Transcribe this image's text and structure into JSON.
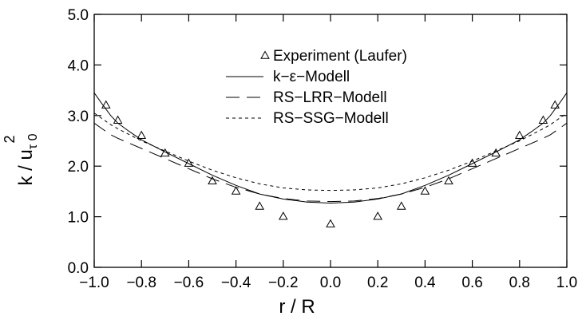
{
  "chart_data": {
    "type": "line",
    "xlabel": "r / R",
    "ylabel_main": "k / u",
    "ylabel_sub": "τ 0",
    "ylabel_sup": "2",
    "xlim": [
      -1.0,
      1.0
    ],
    "ylim": [
      0.0,
      5.0
    ],
    "x_ticks": [
      -1.0,
      -0.8,
      -0.6,
      -0.4,
      -0.2,
      0.0,
      0.2,
      0.4,
      0.6,
      0.8,
      1.0
    ],
    "x_tick_labels": [
      "−1.0",
      "−0.8",
      "−0.6",
      "−0.4",
      "−0.2",
      "0.0",
      "0.2",
      "0.4",
      "0.6",
      "0.8",
      "1.0"
    ],
    "y_ticks": [
      0.0,
      1.0,
      2.0,
      3.0,
      4.0,
      5.0
    ],
    "y_tick_labels": [
      "0.0",
      "1.0",
      "2.0",
      "3.0",
      "4.0",
      "5.0"
    ],
    "grid": false,
    "legend_position": "top-center",
    "series": [
      {
        "name": "Experiment (Laufer)",
        "style": "triangle-markers",
        "x": [
          -0.95,
          -0.9,
          -0.8,
          -0.7,
          -0.6,
          -0.5,
          -0.4,
          -0.3,
          -0.2,
          0.0,
          0.2,
          0.3,
          0.4,
          0.5,
          0.6,
          0.7,
          0.8,
          0.9,
          0.95
        ],
        "y": [
          3.2,
          2.9,
          2.6,
          2.25,
          2.05,
          1.7,
          1.5,
          1.2,
          1.0,
          0.85,
          1.0,
          1.2,
          1.5,
          1.7,
          2.05,
          2.25,
          2.6,
          2.9,
          3.2
        ]
      },
      {
        "name": "k−ε−Modell",
        "style": "solid",
        "x": [
          -1.0,
          -0.97,
          -0.93,
          -0.9,
          -0.85,
          -0.8,
          -0.7,
          -0.6,
          -0.5,
          -0.4,
          -0.3,
          -0.2,
          -0.1,
          0.0,
          0.1,
          0.2,
          0.3,
          0.4,
          0.5,
          0.6,
          0.7,
          0.8,
          0.85,
          0.9,
          0.93,
          0.97,
          1.0
        ],
        "y": [
          3.45,
          3.25,
          3.0,
          2.85,
          2.68,
          2.52,
          2.28,
          2.05,
          1.82,
          1.62,
          1.45,
          1.35,
          1.29,
          1.27,
          1.29,
          1.35,
          1.45,
          1.62,
          1.82,
          2.05,
          2.28,
          2.52,
          2.68,
          2.85,
          3.0,
          3.25,
          3.45
        ]
      },
      {
        "name": "RS−LRR−Modell",
        "style": "long-dash",
        "x": [
          -1.0,
          -0.97,
          -0.93,
          -0.9,
          -0.85,
          -0.8,
          -0.7,
          -0.6,
          -0.5,
          -0.4,
          -0.3,
          -0.2,
          -0.1,
          0.0,
          0.1,
          0.2,
          0.3,
          0.4,
          0.5,
          0.6,
          0.7,
          0.8,
          0.85,
          0.9,
          0.93,
          0.97,
          1.0
        ],
        "y": [
          2.85,
          2.75,
          2.62,
          2.55,
          2.45,
          2.35,
          2.15,
          1.95,
          1.75,
          1.58,
          1.45,
          1.36,
          1.31,
          1.3,
          1.31,
          1.36,
          1.45,
          1.58,
          1.75,
          1.95,
          2.15,
          2.35,
          2.45,
          2.55,
          2.62,
          2.75,
          2.85
        ]
      },
      {
        "name": "RS−SSG−Modell",
        "style": "short-dash",
        "x": [
          -1.0,
          -0.97,
          -0.93,
          -0.9,
          -0.85,
          -0.8,
          -0.7,
          -0.6,
          -0.5,
          -0.4,
          -0.3,
          -0.2,
          -0.1,
          0.0,
          0.1,
          0.2,
          0.3,
          0.4,
          0.5,
          0.6,
          0.7,
          0.8,
          0.85,
          0.9,
          0.93,
          0.97,
          1.0
        ],
        "y": [
          3.05,
          2.95,
          2.82,
          2.74,
          2.62,
          2.5,
          2.3,
          2.1,
          1.92,
          1.77,
          1.65,
          1.57,
          1.53,
          1.52,
          1.53,
          1.57,
          1.65,
          1.77,
          1.92,
          2.1,
          2.3,
          2.5,
          2.62,
          2.74,
          2.82,
          2.95,
          3.05
        ]
      }
    ]
  }
}
